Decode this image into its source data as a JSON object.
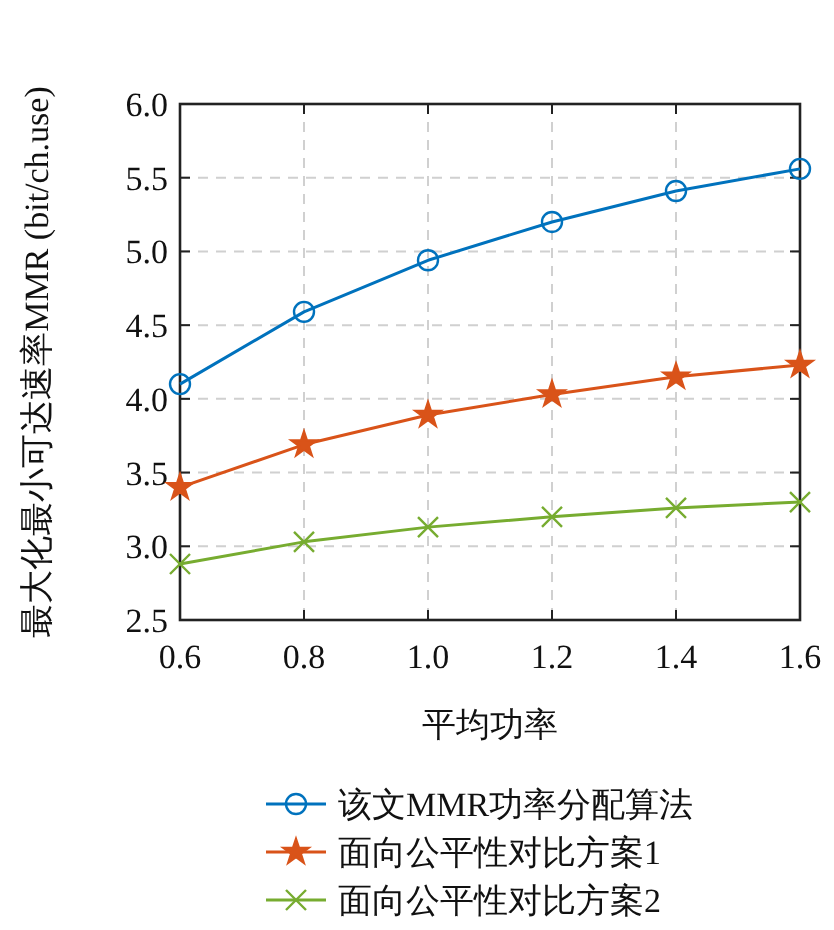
{
  "chart_data": {
    "type": "line",
    "xlabel": "平均功率",
    "ylabel": "最大化最小可达速率MMR (bit/ch.use)",
    "x": [
      0.6,
      0.8,
      1.0,
      1.2,
      1.4,
      1.6
    ],
    "series": [
      {
        "name": "该文MMR功率分配算法",
        "color": "#0072bd",
        "marker": "circle",
        "values": [
          4.1,
          4.59,
          4.94,
          5.2,
          5.41,
          5.56
        ]
      },
      {
        "name": "面向公平性对比方案1",
        "color": "#d95319",
        "marker": "star",
        "values": [
          3.4,
          3.69,
          3.89,
          4.03,
          4.15,
          4.23
        ]
      },
      {
        "name": "面向公平性对比方案2",
        "color": "#77ac30",
        "marker": "cross",
        "values": [
          2.88,
          3.03,
          3.13,
          3.2,
          3.26,
          3.3
        ]
      }
    ],
    "xlim": [
      0.6,
      1.6
    ],
    "xticks": [
      0.6,
      0.8,
      {
        "value": 1.0,
        "label": "1.0"
      },
      1.2,
      1.4,
      1.6
    ],
    "ylim": [
      2.5,
      6.0
    ],
    "yticks": [
      {
        "value": 2.5,
        "label": "2.5"
      },
      {
        "value": 3.0,
        "label": "3.0"
      },
      {
        "value": 3.5,
        "label": "3.5"
      },
      {
        "value": 4.0,
        "label": "4.0"
      },
      {
        "value": 4.5,
        "label": "4.5"
      },
      {
        "value": 5.0,
        "label": "5.0"
      },
      {
        "value": 5.5,
        "label": "5.5"
      },
      {
        "value": 6.0,
        "label": "6.0"
      }
    ],
    "grid": true,
    "legend": "bottom",
    "line_style": "solid"
  }
}
